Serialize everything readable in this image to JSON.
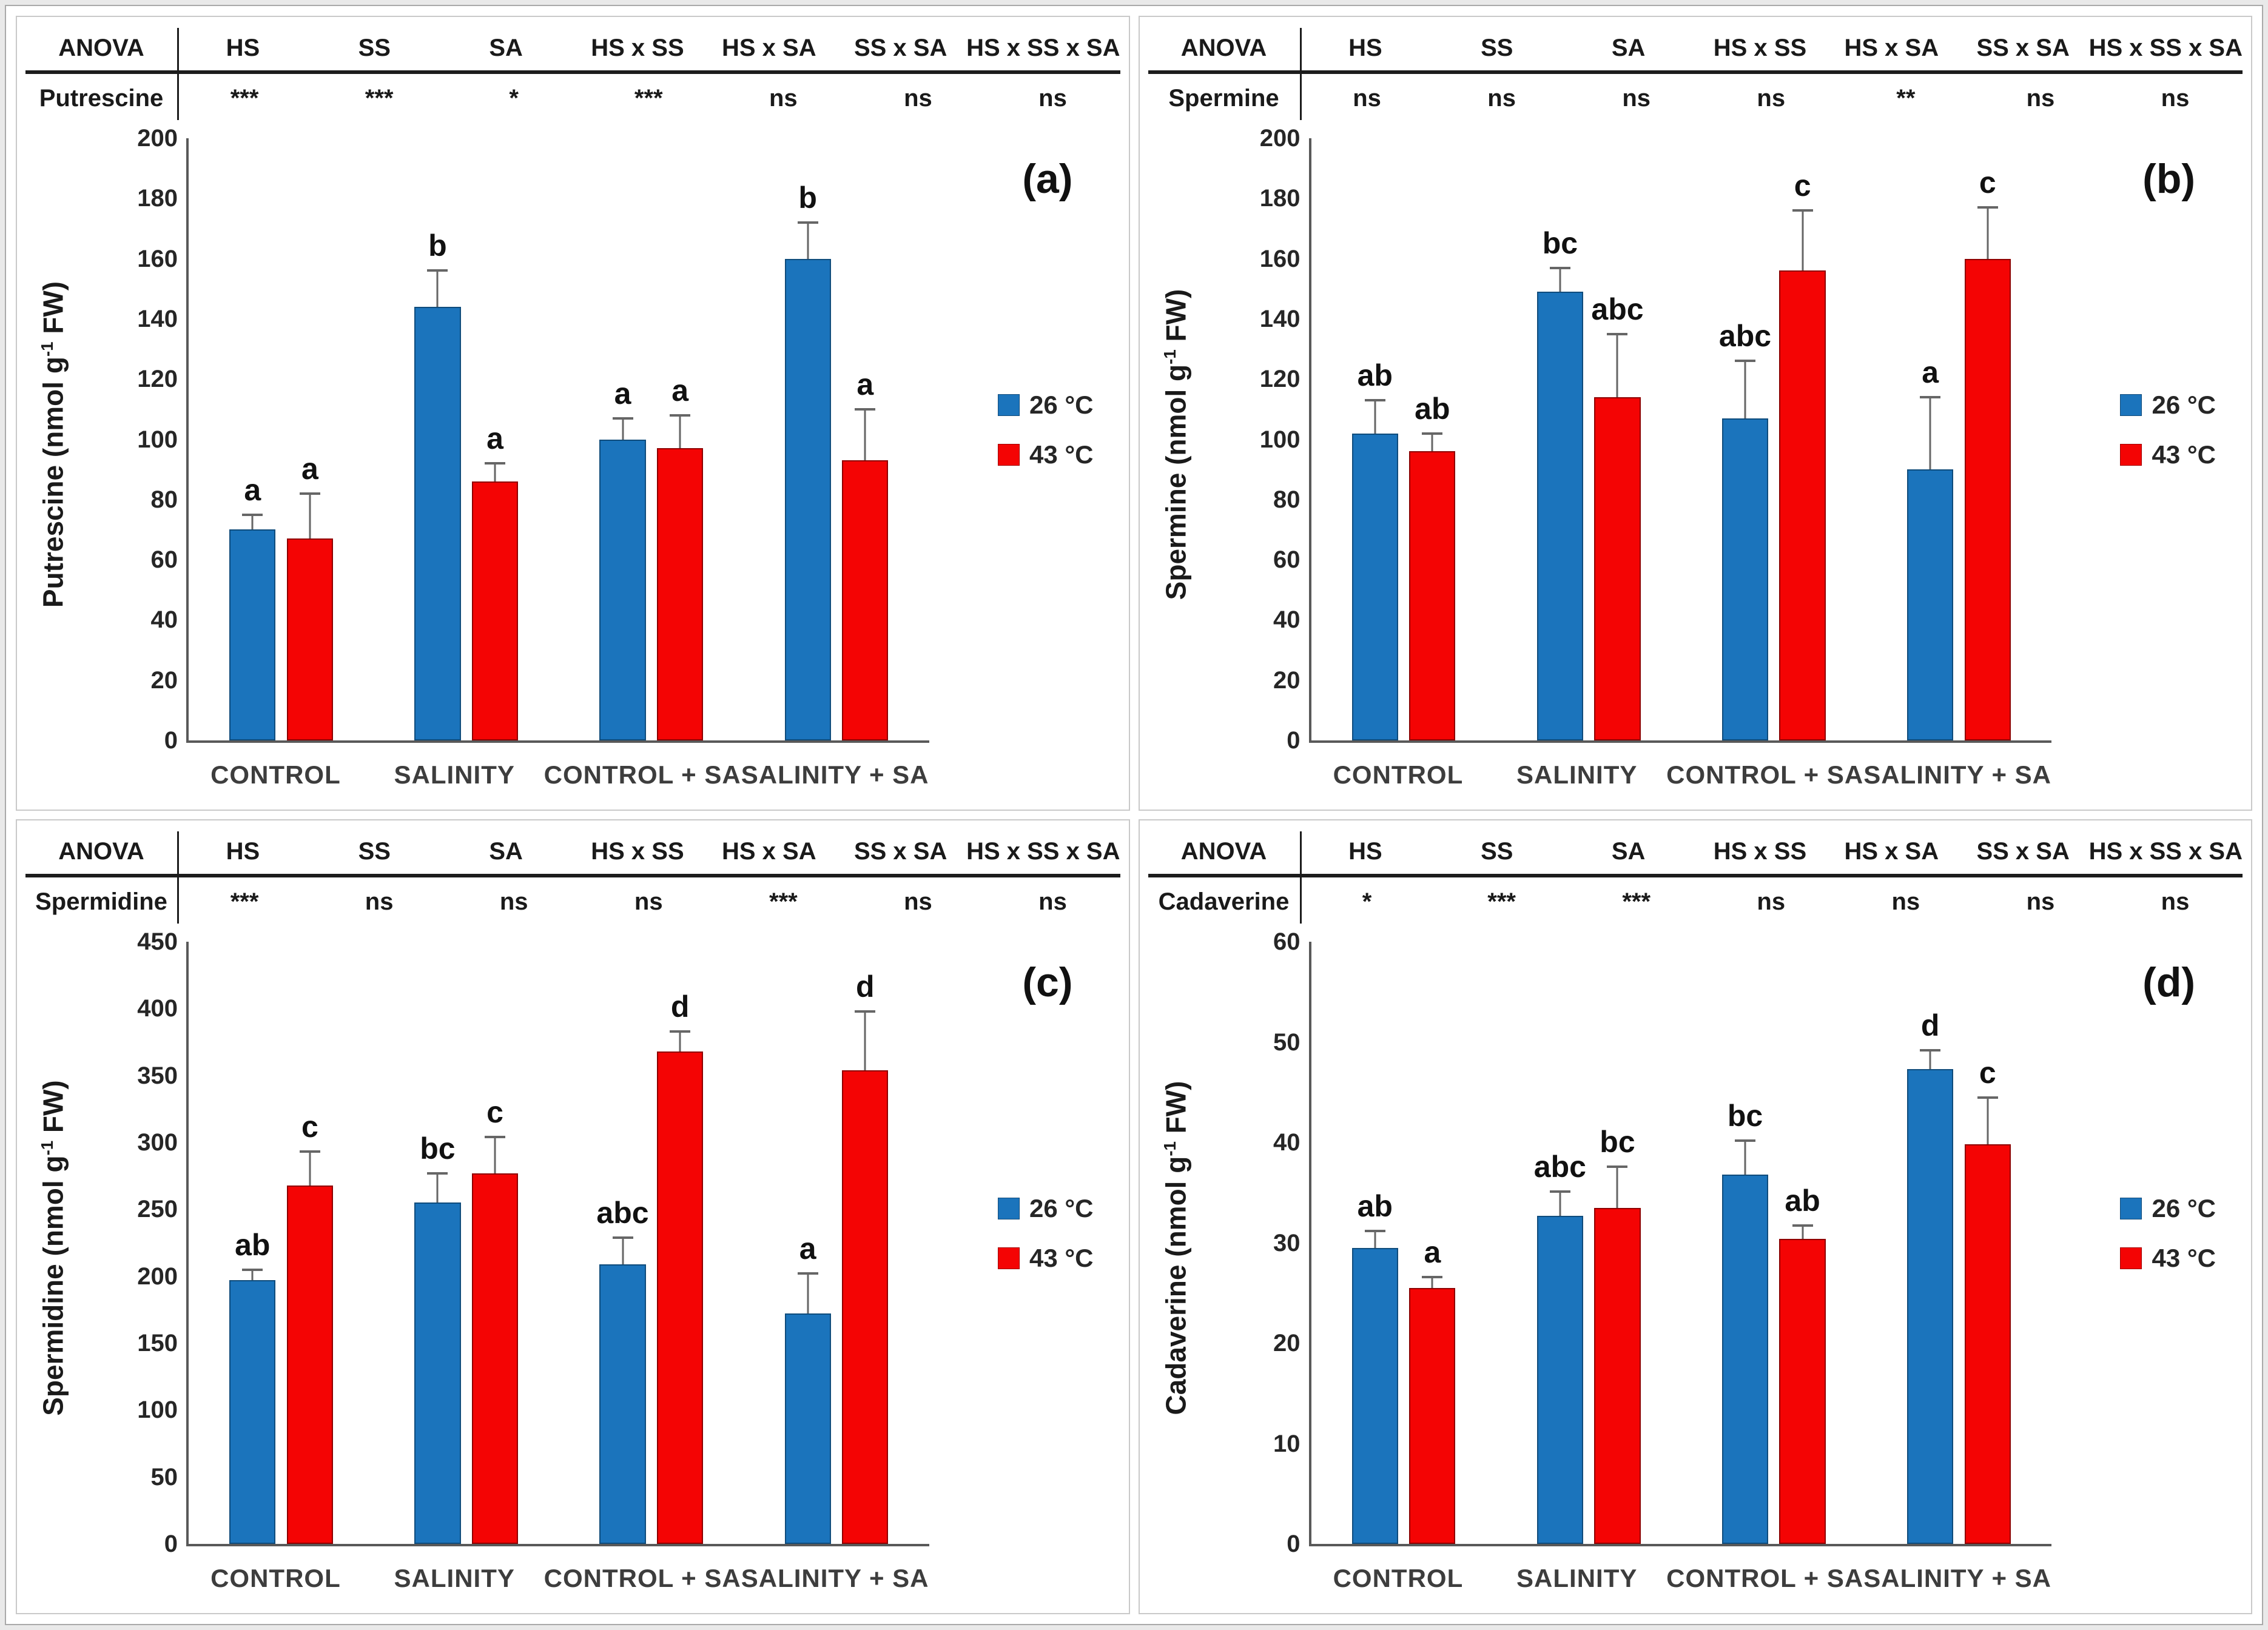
{
  "figure_title": "Polyamine contents figure",
  "chart_data": {
    "type": "bar",
    "categories": [
      "CONTROL",
      "SALINITY",
      "CONTROL + SA",
      "SALINITY + SA"
    ],
    "anova_header": [
      "ANOVA",
      "HS",
      "SS",
      "SA",
      "HS x SS",
      "HS x SA",
      "SS x SA",
      "HS x SS x SA"
    ],
    "legend": [
      {
        "label": "26 °C",
        "color": "#1B74BC"
      },
      {
        "label": "43 °C",
        "color": "#F40404"
      }
    ],
    "series_colors": [
      {
        "fill": "#1B74BC",
        "border": "#0F4C7C"
      },
      {
        "fill": "#F40404",
        "border": "#8F0000"
      }
    ],
    "axis_color": "#595959",
    "error_color": "#666666",
    "panels": [
      {
        "id": "a",
        "tag": "(a)",
        "analyte": "Putrescine",
        "ylabel": {
          "prefix": "Putrescine (nmol g",
          "sup": "-1",
          "suffix": " FW)"
        },
        "ymax": 200,
        "ystep": 20,
        "anova": [
          "***",
          "***",
          "*",
          "***",
          "ns",
          "ns",
          "ns"
        ],
        "series": [
          {
            "name": "26 °C",
            "values": [
              70,
              144,
              100,
              160
            ],
            "errors": [
              5,
              12,
              7,
              12
            ],
            "letters": [
              "a",
              "b",
              "a",
              "b"
            ]
          },
          {
            "name": "43 °C",
            "values": [
              67,
              86,
              97,
              93
            ],
            "errors": [
              15,
              6,
              11,
              17
            ],
            "letters": [
              "a",
              "a",
              "a",
              "a"
            ]
          }
        ]
      },
      {
        "id": "b",
        "tag": "(b)",
        "analyte": "Spermine",
        "ylabel": {
          "prefix": "Spermine (nmol g",
          "sup": "-1",
          "suffix": " FW)"
        },
        "ymax": 200,
        "ystep": 20,
        "anova": [
          "ns",
          "ns",
          "ns",
          "ns",
          "**",
          "ns",
          "ns"
        ],
        "series": [
          {
            "name": "26 °C",
            "values": [
              102,
              149,
              107,
              90
            ],
            "errors": [
              11,
              8,
              19,
              24
            ],
            "letters": [
              "ab",
              "bc",
              "abc",
              "a"
            ]
          },
          {
            "name": "43 °C",
            "values": [
              96,
              114,
              156,
              160
            ],
            "errors": [
              6,
              21,
              20,
              17
            ],
            "letters": [
              "ab",
              "abc",
              "c",
              "c"
            ]
          }
        ]
      },
      {
        "id": "c",
        "tag": "(c)",
        "analyte": "Spermidine",
        "ylabel": {
          "prefix": "Spermidine (nmol g",
          "sup": "-1",
          "suffix": " FW)"
        },
        "ymax": 450,
        "ystep": 50,
        "anova": [
          "***",
          "ns",
          "ns",
          "ns",
          "***",
          "ns",
          "ns"
        ],
        "series": [
          {
            "name": "26 °C",
            "values": [
              197,
              255,
              209,
              172
            ],
            "errors": [
              8,
              22,
              20,
              30
            ],
            "letters": [
              "ab",
              "bc",
              "abc",
              "a"
            ]
          },
          {
            "name": "43 °C",
            "values": [
              268,
              277,
              368,
              354
            ],
            "errors": [
              25,
              27,
              15,
              44
            ],
            "letters": [
              "c",
              "c",
              "d",
              "d"
            ]
          }
        ]
      },
      {
        "id": "d",
        "tag": "(d)",
        "analyte": "Cadaverine",
        "ylabel": {
          "prefix": "Cadaverine (nmol g",
          "sup": "-1",
          "suffix": " FW)"
        },
        "ymax": 60,
        "ystep": 10,
        "anova": [
          "*",
          "***",
          "***",
          "ns",
          "ns",
          "ns",
          "ns"
        ],
        "series": [
          {
            "name": "26 °C",
            "values": [
              29.5,
              32.7,
              36.8,
              47.3
            ],
            "errors": [
              1.7,
              2.4,
              3.4,
              1.9
            ],
            "letters": [
              "ab",
              "abc",
              "bc",
              "d"
            ]
          },
          {
            "name": "43 °C",
            "values": [
              25.5,
              33.5,
              30.4,
              39.8
            ],
            "errors": [
              1.1,
              4.1,
              1.3,
              4.7
            ],
            "letters": [
              "a",
              "bc",
              "ab",
              "c"
            ]
          }
        ]
      }
    ]
  }
}
